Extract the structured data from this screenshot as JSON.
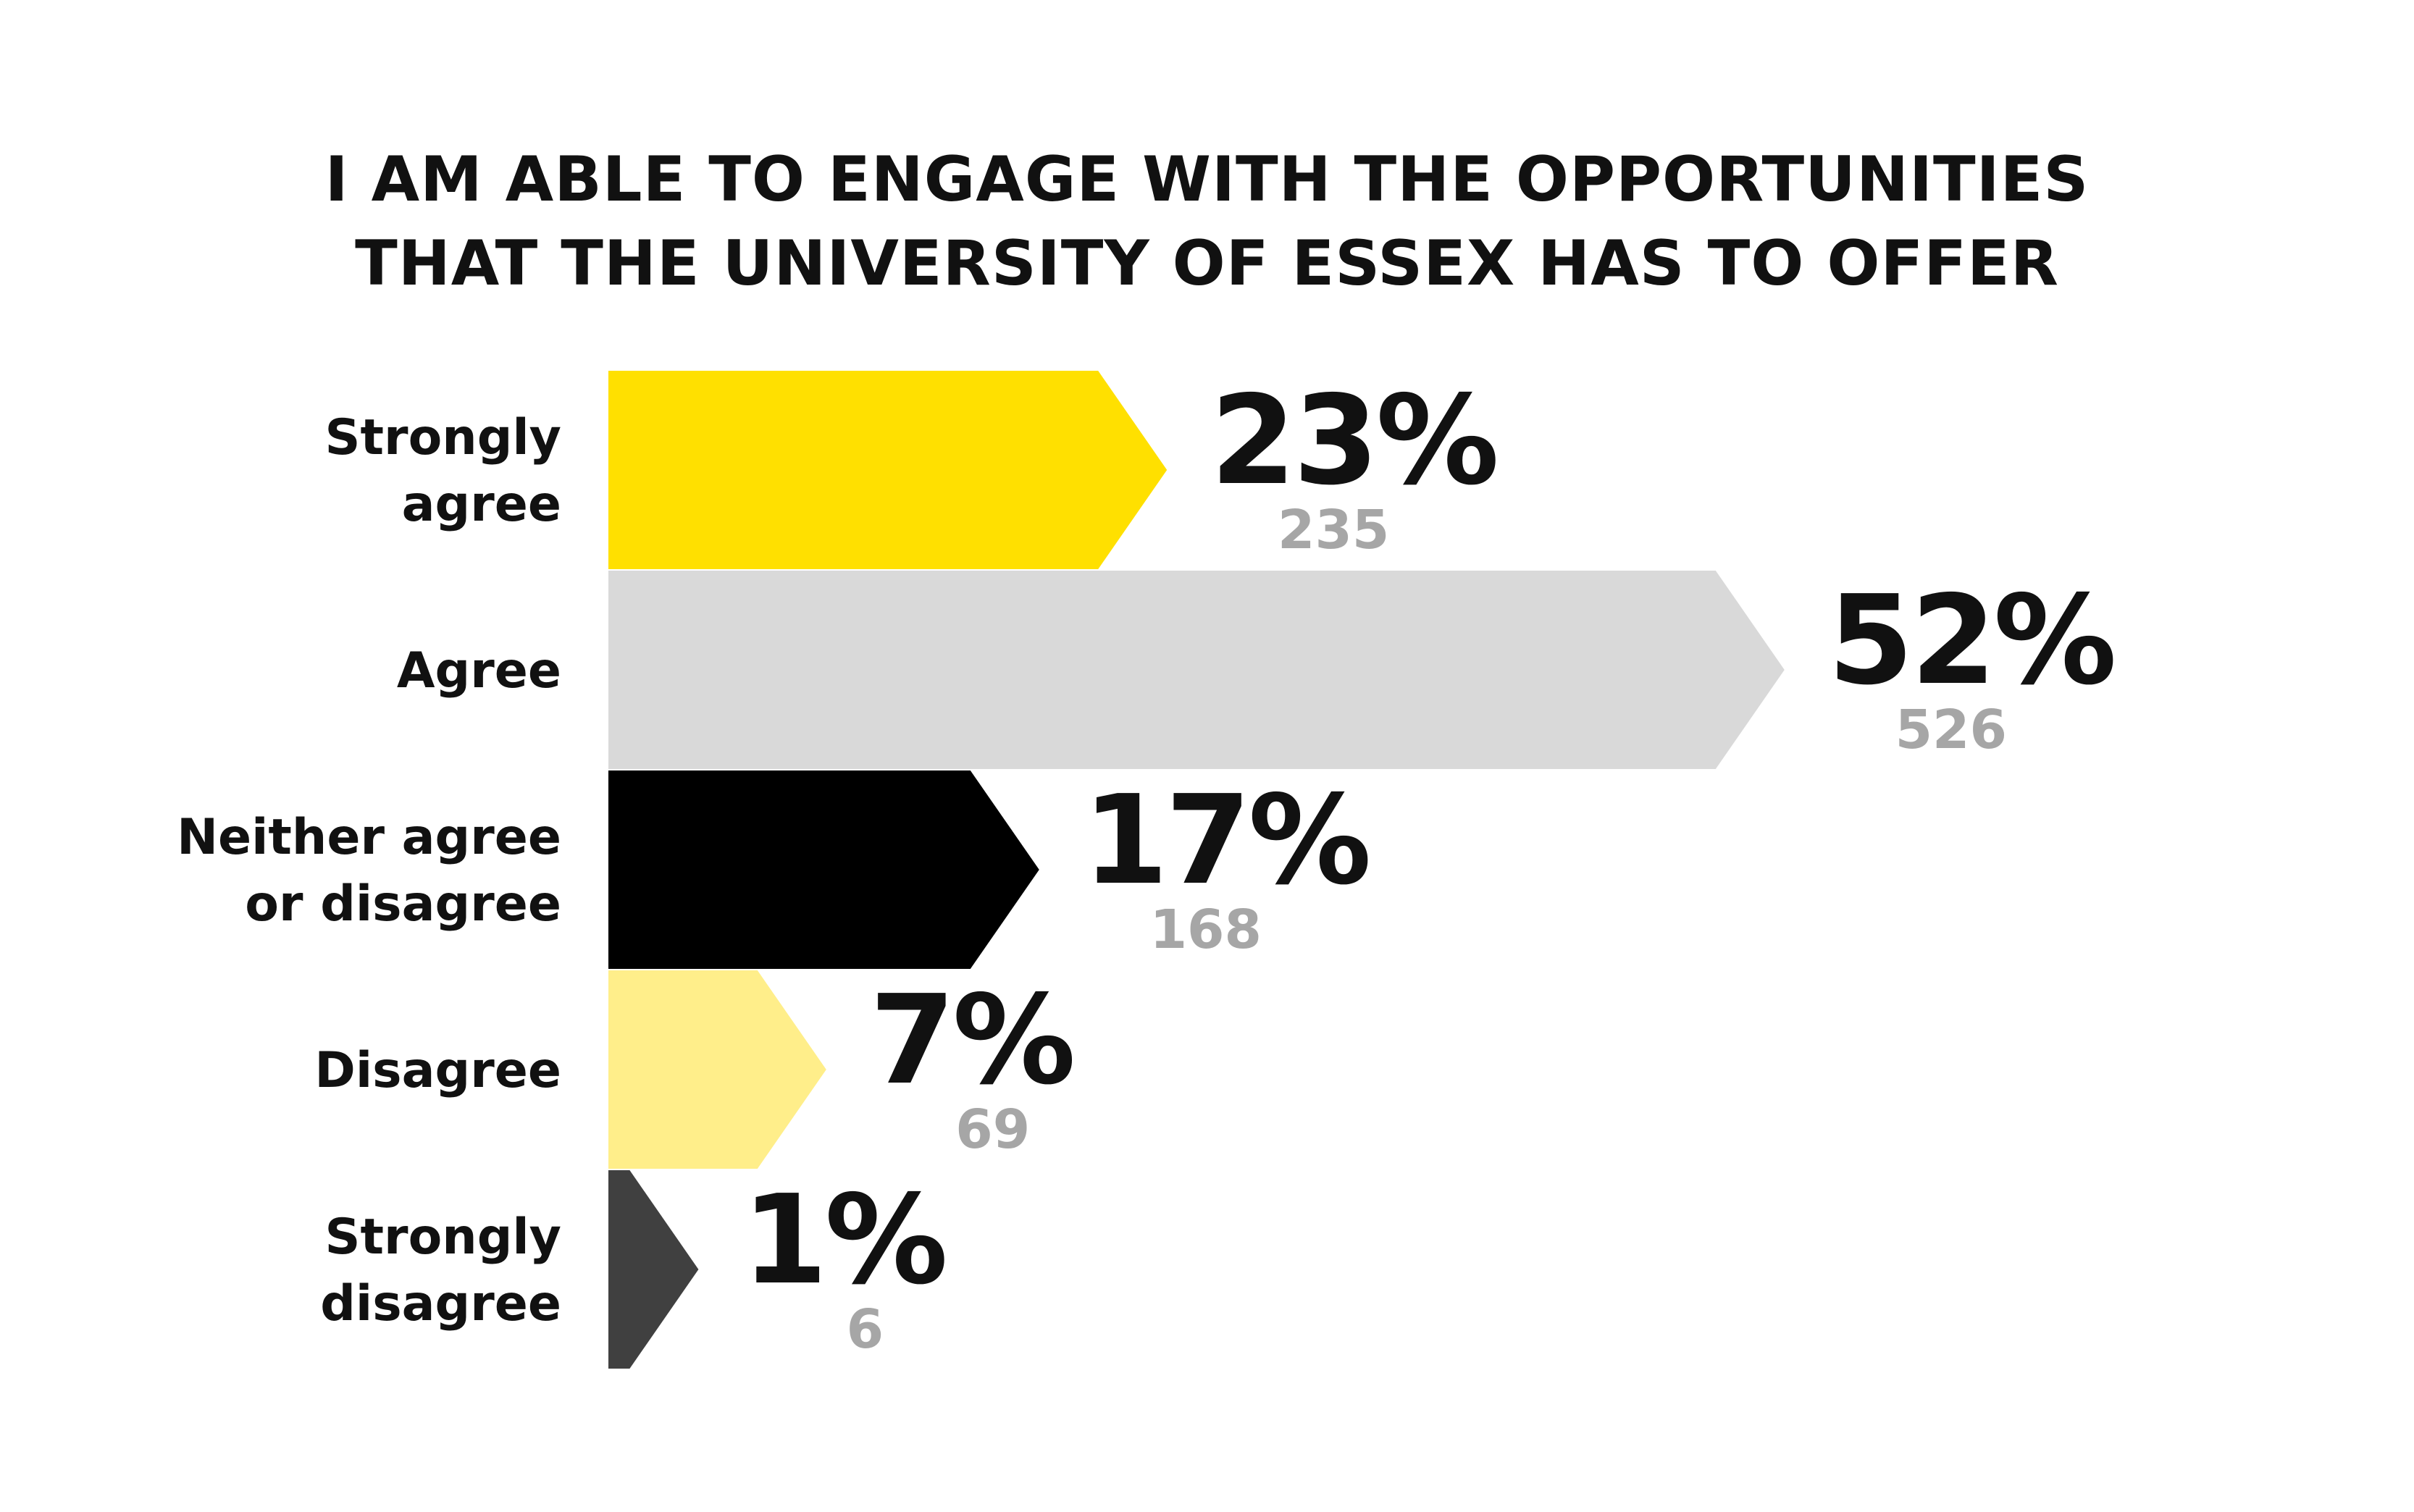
{
  "chart_data": {
    "type": "bar",
    "orientation": "horizontal",
    "title_lines": [
      "I AM ABLE TO ENGAGE WITH THE OPPORTUNITIES",
      "THAT THE UNIVERSITY OF ESSEX HAS TO OFFER"
    ],
    "categories": [
      [
        "Strongly",
        "agree"
      ],
      [
        "Agree"
      ],
      [
        "Neither agree",
        "or disagree"
      ],
      [
        "Disagree"
      ],
      [
        "Strongly",
        "disagree"
      ]
    ],
    "series": [
      {
        "values": [
          23,
          52,
          17,
          7,
          1
        ],
        "value_labels": [
          "23%",
          "52%",
          "17%",
          "7%",
          "1%"
        ],
        "counts": [
          "235",
          "526",
          "168",
          "69",
          "6"
        ]
      }
    ],
    "bar_colors": [
      "#FFE000",
      "#D9D9D9",
      "#000000",
      "#FFEE8A",
      "#404040"
    ],
    "value_label_color": "#111111",
    "count_label_color": "#A6A6A6",
    "grid": false,
    "legend": "none"
  }
}
